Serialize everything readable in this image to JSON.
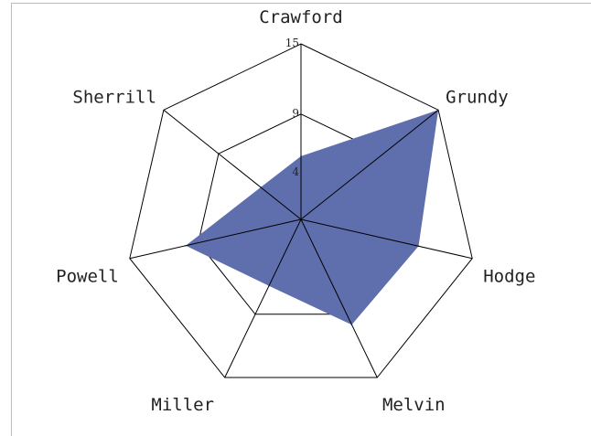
{
  "chart_data": {
    "type": "radar",
    "categories": [
      "Crawford",
      "Grundy",
      "Hodge",
      "Melvin",
      "Miller",
      "Powell",
      "Sherrill"
    ],
    "series": [
      {
        "values": [
          5.4,
          15,
          10.3,
          10,
          6.3,
          10.1,
          4.4
        ]
      }
    ],
    "ticks": [
      4,
      9,
      15
    ],
    "range": [
      0,
      15
    ],
    "grid": true,
    "legend": "none",
    "fill_color": "#5f6ead"
  }
}
